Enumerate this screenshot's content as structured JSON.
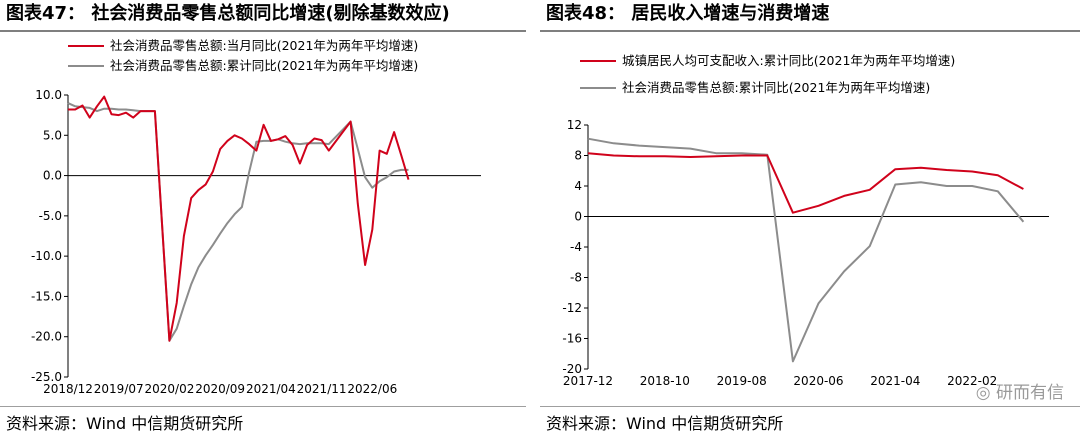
{
  "panels": [
    {
      "title": "图表47： 社会消费品零售总额同比增速(剔除基数效应)",
      "source": "资料来源：Wind 中信期货研究所",
      "chart_data": {
        "type": "line",
        "ylim": [
          -25,
          10
        ],
        "yticks": [
          10,
          5,
          0,
          -5,
          -10,
          -15,
          -20,
          -25
        ],
        "ytick_labels": [
          "10.0",
          "5.0",
          "0.0",
          "-5.0",
          "-10.0",
          "-15.0",
          "-20.0",
          "-25.0"
        ],
        "xlim": [
          0,
          57
        ],
        "xticks": [
          0,
          7,
          14,
          21,
          28,
          35,
          42
        ],
        "xtick_labels": [
          "2018/12",
          "2019/07",
          "2020/02",
          "2020/09",
          "2021/04",
          "2021/11",
          "2022/06"
        ],
        "legend_position": "top",
        "series": [
          {
            "name": "社会消费品零售总额:当月同比(2021年为两年平均增速)",
            "color": "#d0021b",
            "x": [
              0,
              1,
              2,
              3,
              4,
              5,
              6,
              7,
              8,
              9,
              10,
              11,
              12,
              14,
              15,
              16,
              17,
              18,
              19,
              20,
              21,
              22,
              23,
              24,
              25,
              26,
              27,
              28,
              29,
              30,
              31,
              32,
              33,
              34,
              35,
              36,
              39,
              40,
              41,
              42,
              43,
              44,
              45,
              46,
              47
            ],
            "y": [
              8.2,
              8.2,
              8.7,
              7.2,
              8.6,
              9.8,
              7.6,
              7.5,
              7.8,
              7.2,
              8.0,
              8.0,
              8.0,
              -20.5,
              -15.8,
              -7.5,
              -2.8,
              -1.8,
              -1.1,
              0.5,
              3.3,
              4.3,
              5.0,
              4.6,
              3.9,
              3.1,
              6.3,
              4.3,
              4.5,
              4.9,
              3.8,
              1.5,
              3.8,
              4.6,
              4.4,
              3.1,
              6.7,
              -3.5,
              -11.1,
              -6.7,
              3.1,
              2.7,
              5.4,
              2.5,
              -0.5
            ]
          },
          {
            "name": "社会消费品零售总额:累计同比(2021年为两年平均增速)",
            "color": "#8c8c8c",
            "x": [
              0,
              1,
              2,
              3,
              4,
              5,
              6,
              7,
              8,
              9,
              10,
              11,
              12,
              14,
              15,
              16,
              17,
              18,
              19,
              20,
              21,
              22,
              23,
              24,
              25,
              26,
              27,
              28,
              29,
              30,
              31,
              32,
              33,
              34,
              35,
              36,
              39,
              40,
              41,
              42,
              43,
              44,
              45,
              46,
              47
            ],
            "y": [
              9.0,
              8.6,
              8.5,
              8.4,
              8.0,
              8.3,
              8.3,
              8.2,
              8.2,
              8.1,
              8.0,
              8.0,
              8.0,
              -20.5,
              -19.0,
              -16.2,
              -13.5,
              -11.4,
              -9.9,
              -8.6,
              -7.2,
              -5.9,
              -4.8,
              -3.9,
              0.4,
              4.2,
              4.3,
              4.3,
              4.5,
              4.2,
              4.0,
              3.9,
              4.0,
              4.0,
              4.0,
              3.9,
              6.7,
              3.3,
              -0.2,
              -1.5,
              -0.7,
              -0.2,
              0.5,
              0.7,
              0.7
            ]
          }
        ]
      }
    },
    {
      "title": "图表48： 居民收入增速与消费增速",
      "source": "资料来源：Wind 中信期货研究所",
      "chart_data": {
        "type": "line",
        "ylim": [
          -20,
          12
        ],
        "yticks": [
          12,
          8,
          4,
          0,
          -4,
          -8,
          -12,
          -16,
          -20
        ],
        "ytick_labels": [
          "12",
          "8",
          "4",
          "0",
          "-4",
          "-8",
          "-12",
          "-16",
          "-20"
        ],
        "xlim": [
          0,
          18
        ],
        "xticks": [
          0,
          3,
          6,
          9,
          12,
          15
        ],
        "xtick_labels": [
          "2017-12",
          "2018-10",
          "2019-08",
          "2020-06",
          "2021-04",
          "2022-02"
        ],
        "legend_position": "top",
        "series": [
          {
            "name": "城镇居民人均可支配收入:累计同比(2021年为两年平均增速)",
            "color": "#d0021b",
            "x": [
              0,
              1,
              2,
              3,
              4,
              5,
              6,
              7,
              8,
              9,
              10,
              11,
              12,
              13,
              14,
              15,
              16,
              17
            ],
            "y": [
              8.3,
              8.0,
              7.9,
              7.9,
              7.8,
              7.9,
              8.0,
              8.0,
              0.5,
              1.4,
              2.7,
              3.5,
              6.2,
              6.4,
              6.1,
              5.9,
              5.4,
              3.6
            ]
          },
          {
            "name": "社会消费品零售总额:累计同比(2021年为两年平均增速)",
            "color": "#8c8c8c",
            "x": [
              0,
              1,
              2,
              3,
              4,
              5,
              6,
              7,
              8,
              9,
              10,
              11,
              12,
              13,
              14,
              15,
              16,
              17
            ],
            "y": [
              10.2,
              9.6,
              9.3,
              9.1,
              8.9,
              8.3,
              8.3,
              8.1,
              -19.0,
              -11.4,
              -7.2,
              -3.9,
              4.2,
              4.5,
              4.0,
              4.0,
              3.3,
              -0.7
            ]
          }
        ]
      }
    }
  ],
  "watermark": "研而有信"
}
